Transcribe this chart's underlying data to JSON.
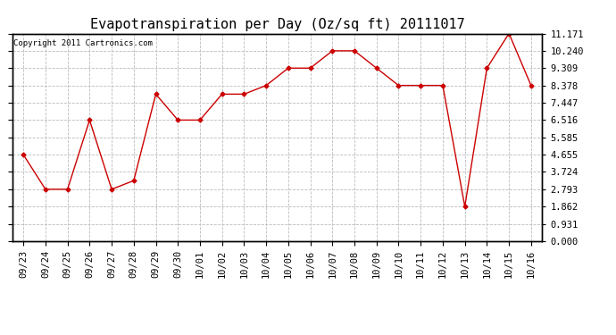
{
  "title": "Evapotranspiration per Day (Oz/sq ft) 20111017",
  "copyright_text": "Copyright 2011 Cartronics.com",
  "x_labels": [
    "09/23",
    "09/24",
    "09/25",
    "09/26",
    "09/27",
    "09/28",
    "09/29",
    "09/30",
    "10/01",
    "10/02",
    "10/03",
    "10/04",
    "10/05",
    "10/06",
    "10/07",
    "10/08",
    "10/09",
    "10/10",
    "10/11",
    "10/12",
    "10/13",
    "10/14",
    "10/15",
    "10/16"
  ],
  "y_values": [
    4.655,
    2.793,
    2.793,
    6.516,
    2.793,
    3.258,
    7.91,
    6.516,
    6.516,
    7.91,
    7.91,
    8.378,
    9.309,
    9.309,
    10.24,
    10.24,
    9.309,
    8.378,
    8.378,
    8.378,
    1.862,
    9.309,
    11.171,
    8.378
  ],
  "y_ticks": [
    0.0,
    0.931,
    1.862,
    2.793,
    3.724,
    4.655,
    5.585,
    6.516,
    7.447,
    8.378,
    9.309,
    10.24,
    11.171
  ],
  "line_color": "#cc0000",
  "marker": "D",
  "marker_size": 2.5,
  "bg_color": "#ffffff",
  "plot_bg_color": "#ffffff",
  "grid_color": "#bbbbbb",
  "title_fontsize": 11,
  "copyright_fontsize": 6.5,
  "tick_fontsize": 7.5,
  "ylim": [
    0.0,
    11.171
  ]
}
